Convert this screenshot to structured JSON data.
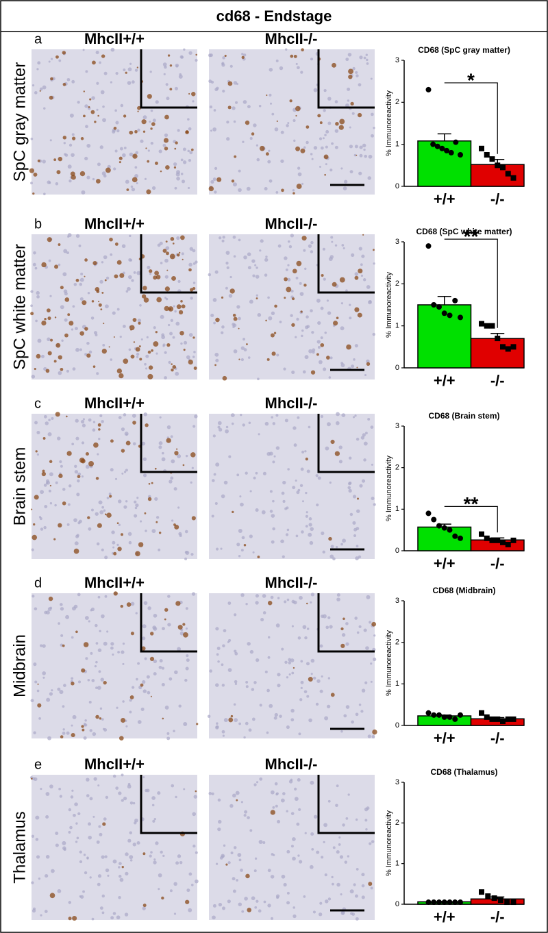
{
  "figure": {
    "title": "cd68 - Endstage",
    "panels": [
      {
        "letter": "a",
        "region": "SpC gray matter",
        "left": "MhcII+/+",
        "right": "MhcII-/-"
      },
      {
        "letter": "b",
        "region": "SpC white matter",
        "left": "MhcII+/+",
        "right": "MhcII-/-"
      },
      {
        "letter": "c",
        "region": "Brain stem",
        "left": "MhcII+/+",
        "right": "MhcII-/-"
      },
      {
        "letter": "d",
        "region": "Midbrain",
        "left": "MhcII+/+",
        "right": "MhcII-/-"
      },
      {
        "letter": "e",
        "region": "Thalamus",
        "left": "MhcII+/+",
        "right": "MhcII-/-"
      }
    ]
  },
  "chart_data": [
    {
      "type": "bar",
      "title": "CD68 (SpC gray matter)",
      "ylabel": "% Immunoreactivity",
      "categories": [
        "+/+",
        "-/-"
      ],
      "values": [
        1.08,
        0.52
      ],
      "errors": [
        0.17,
        0.12
      ],
      "colors": [
        "#00e000",
        "#e00000"
      ],
      "points": [
        [
          2.3,
          1.0,
          0.95,
          0.9,
          0.85,
          0.8,
          1.05,
          0.75
        ],
        [
          0.9,
          0.75,
          0.65,
          0.5,
          0.45,
          0.3,
          0.2
        ]
      ],
      "significance": "*",
      "ylim": [
        0,
        3
      ],
      "yticks": [
        0,
        1,
        2,
        3
      ]
    },
    {
      "type": "bar",
      "title": "CD68 (SpC white matter)",
      "ylabel": "% Immunoreactivity",
      "categories": [
        "+/+",
        "-/-"
      ],
      "values": [
        1.5,
        0.7
      ],
      "errors": [
        0.2,
        0.12
      ],
      "colors": [
        "#00e000",
        "#e00000"
      ],
      "points": [
        [
          2.9,
          1.5,
          1.45,
          1.3,
          1.25,
          1.6,
          1.2
        ],
        [
          1.05,
          1.0,
          1.0,
          0.7,
          0.5,
          0.45,
          0.5
        ]
      ],
      "significance": "**",
      "ylim": [
        0,
        3
      ],
      "yticks": [
        0,
        1,
        2,
        3
      ]
    },
    {
      "type": "bar",
      "title": "CD68 (Brain stem)",
      "ylabel": "% Immunoreactivity",
      "categories": [
        "+/+",
        "-/-"
      ],
      "values": [
        0.57,
        0.26
      ],
      "errors": [
        0.07,
        0.05
      ],
      "colors": [
        "#00e000",
        "#e00000"
      ],
      "points": [
        [
          0.9,
          0.75,
          0.6,
          0.55,
          0.5,
          0.35,
          0.3
        ],
        [
          0.4,
          0.3,
          0.25,
          0.25,
          0.2,
          0.15,
          0.25
        ]
      ],
      "significance": "**",
      "ylim": [
        0,
        3
      ],
      "yticks": [
        0,
        1,
        2,
        3
      ]
    },
    {
      "type": "bar",
      "title": "CD68 (Midbrain)",
      "ylabel": "% Immunoreactivity",
      "categories": [
        "+/+",
        "-/-"
      ],
      "values": [
        0.23,
        0.16
      ],
      "errors": [
        0.02,
        0.03
      ],
      "colors": [
        "#00e000",
        "#e00000"
      ],
      "points": [
        [
          0.3,
          0.25,
          0.25,
          0.2,
          0.2,
          0.15,
          0.25
        ],
        [
          0.3,
          0.2,
          0.15,
          0.15,
          0.1,
          0.15,
          0.15
        ]
      ],
      "ylim": [
        0,
        3
      ],
      "yticks": [
        0,
        1,
        2,
        3
      ]
    },
    {
      "type": "bar",
      "title": "CD68 (Thalamus)",
      "ylabel": "% Immunoreactivity",
      "categories": [
        "+/+",
        "-/-"
      ],
      "values": [
        0.06,
        0.13
      ],
      "errors": [
        0.01,
        0.05
      ],
      "colors": [
        "#00e000",
        "#e00000"
      ],
      "points": [
        [
          0.05,
          0.05,
          0.05,
          0.05,
          0.05,
          0.05,
          0.05
        ],
        [
          0.3,
          0.2,
          0.15,
          0.1,
          0.05,
          0.05
        ]
      ],
      "ylim": [
        0,
        3
      ],
      "yticks": [
        0,
        1,
        2,
        3
      ]
    }
  ]
}
